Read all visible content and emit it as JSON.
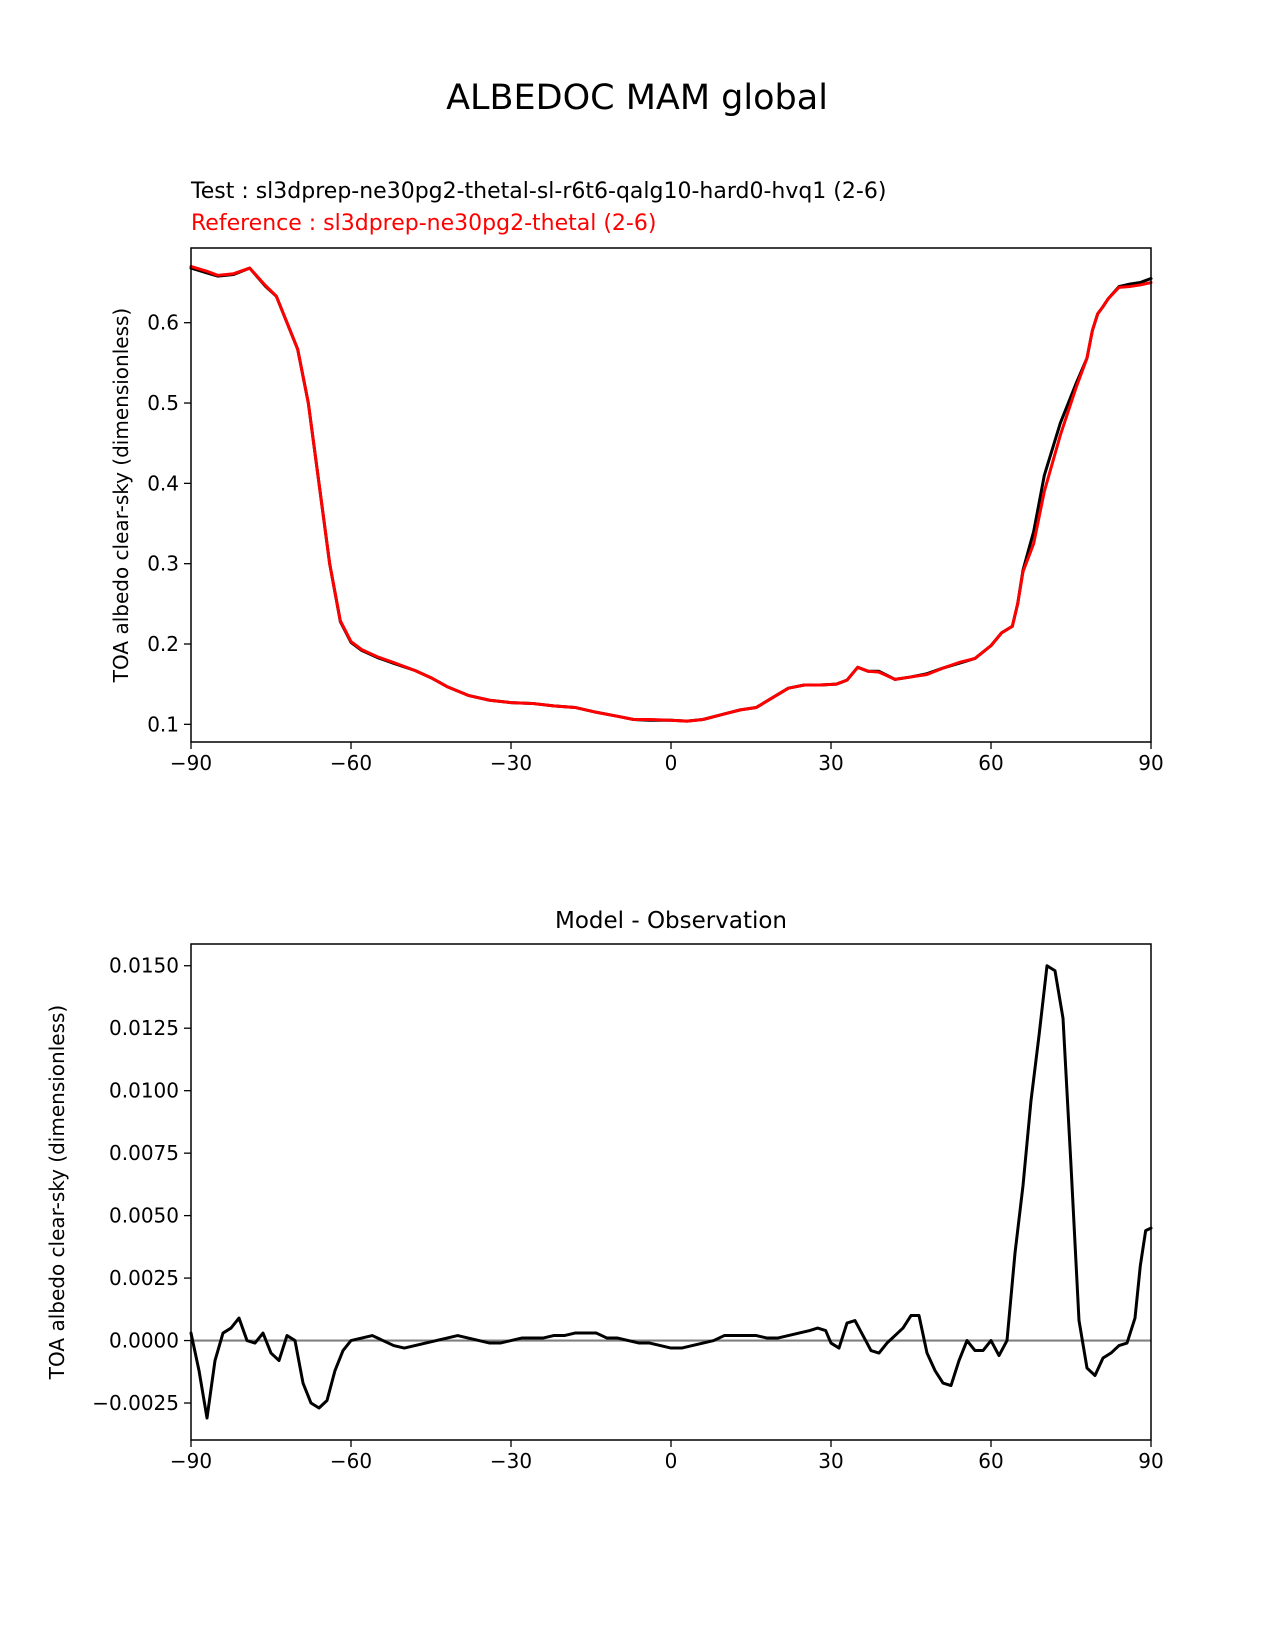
{
  "suptitle": "ALBEDOC MAM global",
  "chart_data": [
    {
      "type": "line",
      "test_label": "Test : sl3dprep-ne30pg2-thetal-sl-r6t6-qalg10-hard0-hvq1 (2-6)",
      "reference_label": "Reference : sl3dprep-ne30pg2-thetal (2-6)",
      "ylabel": "TOA albedo clear-sky (dimensionless)",
      "xlabel": "",
      "xlim": [
        -90,
        90
      ],
      "ylim": [
        0.078,
        0.693
      ],
      "xticks": [
        -90,
        -60,
        -30,
        0,
        30,
        60,
        90
      ],
      "xtick_labels": [
        "−90",
        "−60",
        "−30",
        "0",
        "30",
        "60",
        "90"
      ],
      "yticks": [
        0.1,
        0.2,
        0.3,
        0.4,
        0.5,
        0.6
      ],
      "ytick_labels": [
        "0.1",
        "0.2",
        "0.3",
        "0.4",
        "0.5",
        "0.6"
      ],
      "series": [
        {
          "color": "#000000",
          "points": [
            [
              -90,
              0.668
            ],
            [
              -87,
              0.662
            ],
            [
              -85,
              0.658
            ],
            [
              -82,
              0.66
            ],
            [
              -79,
              0.668
            ],
            [
              -76,
              0.645
            ],
            [
              -74,
              0.633
            ],
            [
              -72,
              0.6
            ],
            [
              -70,
              0.567
            ],
            [
              -68,
              0.5
            ],
            [
              -66,
              0.4
            ],
            [
              -64,
              0.3
            ],
            [
              -62,
              0.228
            ],
            [
              -60,
              0.202
            ],
            [
              -58,
              0.192
            ],
            [
              -55,
              0.183
            ],
            [
              -52,
              0.176
            ],
            [
              -48,
              0.167
            ],
            [
              -45,
              0.158
            ],
            [
              -42,
              0.147
            ],
            [
              -38,
              0.136
            ],
            [
              -34,
              0.13
            ],
            [
              -30,
              0.127
            ],
            [
              -26,
              0.126
            ],
            [
              -22,
              0.123
            ],
            [
              -18,
              0.121
            ],
            [
              -14,
              0.115
            ],
            [
              -10,
              0.11
            ],
            [
              -7,
              0.106
            ],
            [
              -4,
              0.105
            ],
            [
              0,
              0.105
            ],
            [
              3,
              0.104
            ],
            [
              6,
              0.106
            ],
            [
              10,
              0.113
            ],
            [
              13,
              0.118
            ],
            [
              16,
              0.121
            ],
            [
              19,
              0.133
            ],
            [
              22,
              0.145
            ],
            [
              25,
              0.149
            ],
            [
              28,
              0.149
            ],
            [
              31,
              0.15
            ],
            [
              33,
              0.155
            ],
            [
              35,
              0.171
            ],
            [
              37,
              0.166
            ],
            [
              39,
              0.166
            ],
            [
              42,
              0.156
            ],
            [
              45,
              0.159
            ],
            [
              48,
              0.163
            ],
            [
              51,
              0.17
            ],
            [
              54,
              0.176
            ],
            [
              57,
              0.182
            ],
            [
              60,
              0.198
            ],
            [
              62,
              0.214
            ],
            [
              64,
              0.222
            ],
            [
              65,
              0.25
            ],
            [
              66,
              0.292
            ],
            [
              68,
              0.34
            ],
            [
              70,
              0.41
            ],
            [
              73,
              0.475
            ],
            [
              76,
              0.525
            ],
            [
              78,
              0.556
            ],
            [
              79,
              0.59
            ],
            [
              80,
              0.611
            ],
            [
              81,
              0.62
            ],
            [
              82,
              0.63
            ],
            [
              84,
              0.645
            ],
            [
              86,
              0.648
            ],
            [
              88,
              0.65
            ],
            [
              90,
              0.655
            ]
          ]
        },
        {
          "color": "#ff0000",
          "points": [
            [
              -90,
              0.67
            ],
            [
              -87,
              0.664
            ],
            [
              -85,
              0.659
            ],
            [
              -82,
              0.661
            ],
            [
              -79,
              0.668
            ],
            [
              -76,
              0.646
            ],
            [
              -74,
              0.633
            ],
            [
              -72,
              0.6
            ],
            [
              -70,
              0.567
            ],
            [
              -68,
              0.5
            ],
            [
              -66,
              0.4
            ],
            [
              -64,
              0.3
            ],
            [
              -62,
              0.229
            ],
            [
              -60,
              0.203
            ],
            [
              -58,
              0.193
            ],
            [
              -55,
              0.184
            ],
            [
              -52,
              0.177
            ],
            [
              -48,
              0.167
            ],
            [
              -45,
              0.158
            ],
            [
              -42,
              0.147
            ],
            [
              -38,
              0.136
            ],
            [
              -34,
              0.13
            ],
            [
              -30,
              0.127
            ],
            [
              -26,
              0.126
            ],
            [
              -22,
              0.123
            ],
            [
              -18,
              0.121
            ],
            [
              -14,
              0.115
            ],
            [
              -10,
              0.11
            ],
            [
              -7,
              0.106
            ],
            [
              -4,
              0.106
            ],
            [
              0,
              0.105
            ],
            [
              3,
              0.104
            ],
            [
              6,
              0.106
            ],
            [
              10,
              0.113
            ],
            [
              13,
              0.118
            ],
            [
              16,
              0.121
            ],
            [
              19,
              0.133
            ],
            [
              22,
              0.145
            ],
            [
              25,
              0.149
            ],
            [
              28,
              0.149
            ],
            [
              31,
              0.15
            ],
            [
              33,
              0.155
            ],
            [
              35,
              0.171
            ],
            [
              37,
              0.166
            ],
            [
              39,
              0.165
            ],
            [
              42,
              0.156
            ],
            [
              45,
              0.159
            ],
            [
              48,
              0.162
            ],
            [
              51,
              0.17
            ],
            [
              54,
              0.177
            ],
            [
              57,
              0.182
            ],
            [
              60,
              0.198
            ],
            [
              62,
              0.214
            ],
            [
              64,
              0.222
            ],
            [
              65,
              0.25
            ],
            [
              66,
              0.29
            ],
            [
              68,
              0.325
            ],
            [
              70,
              0.39
            ],
            [
              73,
              0.46
            ],
            [
              76,
              0.52
            ],
            [
              78,
              0.556
            ],
            [
              79,
              0.59
            ],
            [
              80,
              0.611
            ],
            [
              81,
              0.62
            ],
            [
              82,
              0.63
            ],
            [
              84,
              0.644
            ],
            [
              86,
              0.645
            ],
            [
              88,
              0.647
            ],
            [
              90,
              0.65
            ]
          ]
        }
      ]
    },
    {
      "type": "line",
      "title": "Model - Observation",
      "ylabel": "TOA albedo clear-sky (dimensionless)",
      "xlabel": "",
      "xlim": [
        -90,
        90
      ],
      "ylim": [
        -0.00398,
        0.01587
      ],
      "xticks": [
        -90,
        -60,
        -30,
        0,
        30,
        60,
        90
      ],
      "xtick_labels": [
        "−90",
        "−60",
        "−30",
        "0",
        "30",
        "60",
        "90"
      ],
      "yticks": [
        -0.0025,
        0.0,
        0.0025,
        0.005,
        0.0075,
        0.01,
        0.0125,
        0.015
      ],
      "ytick_labels": [
        "−0.0025",
        "0.0000",
        "0.0025",
        "0.0050",
        "0.0075",
        "0.0100",
        "0.0125",
        "0.0150"
      ],
      "zero_line_color": "#808080",
      "series": [
        {
          "color": "#000000",
          "points": [
            [
              -90,
              0.0003
            ],
            [
              -88.5,
              -0.0012
            ],
            [
              -87,
              -0.0031
            ],
            [
              -85.5,
              -0.0008
            ],
            [
              -84,
              0.0003
            ],
            [
              -82.5,
              0.0005
            ],
            [
              -81,
              0.0009
            ],
            [
              -79.5,
              0.0
            ],
            [
              -78,
              -0.0001
            ],
            [
              -76.5,
              0.0003
            ],
            [
              -75,
              -0.0005
            ],
            [
              -73.5,
              -0.0008
            ],
            [
              -72,
              0.0002
            ],
            [
              -70.5,
              0.0
            ],
            [
              -69,
              -0.0017
            ],
            [
              -67.5,
              -0.0025
            ],
            [
              -66,
              -0.0027
            ],
            [
              -64.5,
              -0.0024
            ],
            [
              -63,
              -0.0012
            ],
            [
              -61.5,
              -0.0004
            ],
            [
              -60,
              0.0
            ],
            [
              -58,
              0.0001
            ],
            [
              -56,
              0.0002
            ],
            [
              -54,
              0.0
            ],
            [
              -52,
              -0.0002
            ],
            [
              -50,
              -0.0003
            ],
            [
              -48,
              -0.0002
            ],
            [
              -46,
              -0.0001
            ],
            [
              -44,
              0.0
            ],
            [
              -42,
              0.0001
            ],
            [
              -40,
              0.0002
            ],
            [
              -38,
              0.0001
            ],
            [
              -36,
              0.0
            ],
            [
              -34,
              -0.0001
            ],
            [
              -32,
              -0.0001
            ],
            [
              -30,
              0.0
            ],
            [
              -28,
              0.0001
            ],
            [
              -26,
              0.0001
            ],
            [
              -24,
              0.0001
            ],
            [
              -22,
              0.0002
            ],
            [
              -20,
              0.0002
            ],
            [
              -18,
              0.0003
            ],
            [
              -16,
              0.0003
            ],
            [
              -14,
              0.0003
            ],
            [
              -12,
              0.0001
            ],
            [
              -10,
              0.0001
            ],
            [
              -8,
              0.0
            ],
            [
              -6,
              -0.0001
            ],
            [
              -4,
              -0.0001
            ],
            [
              -2,
              -0.0002
            ],
            [
              0,
              -0.0003
            ],
            [
              2,
              -0.0003
            ],
            [
              4,
              -0.0002
            ],
            [
              6,
              -0.0001
            ],
            [
              8,
              0.0
            ],
            [
              10,
              0.0002
            ],
            [
              12,
              0.0002
            ],
            [
              14,
              0.0002
            ],
            [
              16,
              0.0002
            ],
            [
              18,
              0.0001
            ],
            [
              20,
              0.0001
            ],
            [
              22,
              0.0002
            ],
            [
              24,
              0.0003
            ],
            [
              26,
              0.0004
            ],
            [
              27.5,
              0.0005
            ],
            [
              29,
              0.0004
            ],
            [
              30,
              -0.0001
            ],
            [
              31.5,
              -0.0003
            ],
            [
              33,
              0.0007
            ],
            [
              34.5,
              0.0008
            ],
            [
              36,
              0.0002
            ],
            [
              37.5,
              -0.0004
            ],
            [
              39,
              -0.0005
            ],
            [
              40.5,
              -0.0001
            ],
            [
              42,
              0.0002
            ],
            [
              43.5,
              0.0005
            ],
            [
              45,
              0.001
            ],
            [
              46.5,
              0.001
            ],
            [
              48,
              -0.0005
            ],
            [
              49.5,
              -0.0012
            ],
            [
              51,
              -0.0017
            ],
            [
              52.5,
              -0.0018
            ],
            [
              54,
              -0.0008
            ],
            [
              55.5,
              0.0
            ],
            [
              57,
              -0.0004
            ],
            [
              58.5,
              -0.0004
            ],
            [
              60,
              0.0
            ],
            [
              61.5,
              -0.0006
            ],
            [
              63,
              0.0
            ],
            [
              64.5,
              0.0035
            ],
            [
              66,
              0.0062
            ],
            [
              67.5,
              0.0096
            ],
            [
              69,
              0.0122
            ],
            [
              70.5,
              0.015
            ],
            [
              72,
              0.0148
            ],
            [
              73.5,
              0.0129
            ],
            [
              75,
              0.007
            ],
            [
              76.5,
              0.0008
            ],
            [
              78,
              -0.0011
            ],
            [
              79.5,
              -0.0014
            ],
            [
              81,
              -0.0007
            ],
            [
              82.5,
              -0.0005
            ],
            [
              84,
              -0.0002
            ],
            [
              85.5,
              -0.0001
            ],
            [
              87,
              0.0009
            ],
            [
              88,
              0.003
            ],
            [
              89,
              0.0044
            ],
            [
              90,
              0.0045
            ]
          ]
        }
      ]
    }
  ]
}
